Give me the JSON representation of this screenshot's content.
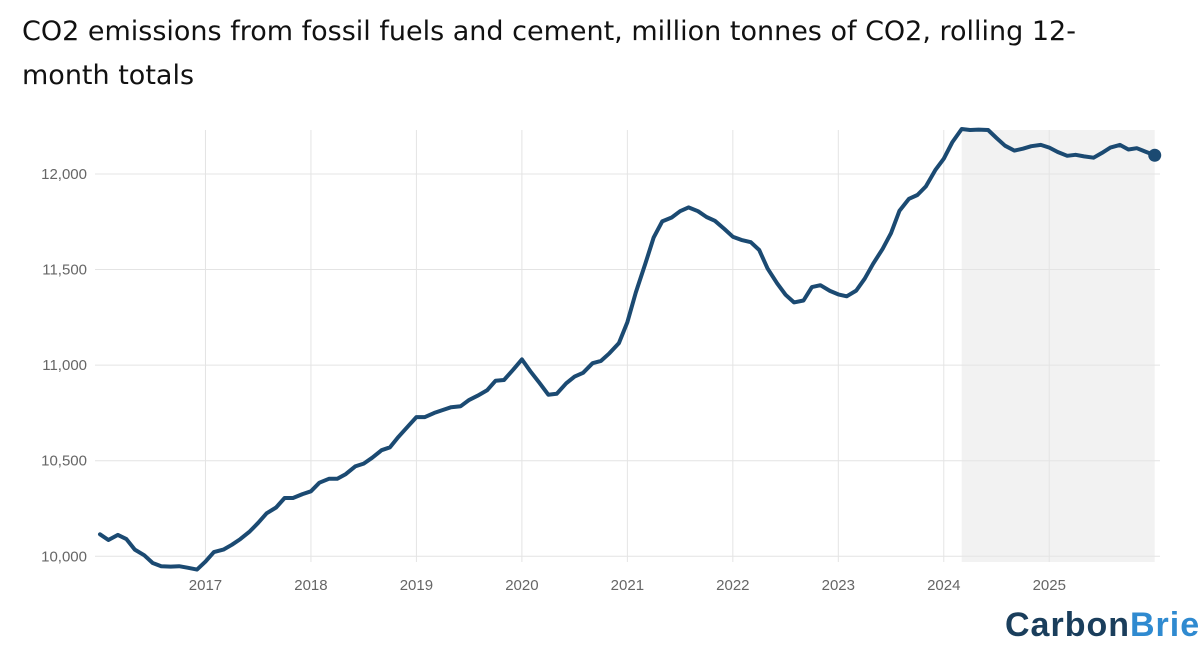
{
  "subtitle": "CO2 emissions from fossil fuels and cement, million tonnes of CO2, rolling 12-month totals",
  "brand": {
    "part1": "Carbon",
    "part2": "Brief"
  },
  "colors": {
    "line": "#1b4a72",
    "shade": "#f2f2f2",
    "grid": "#e4e4e4",
    "axis_text": "#666666"
  },
  "chart_data": {
    "type": "line",
    "title": "",
    "xlabel": "",
    "ylabel": "",
    "ylim": [
      9970,
      12230
    ],
    "xlim": [
      2016.0,
      2026.05
    ],
    "y_ticks": [
      {
        "value": 10000,
        "label": "10,000"
      },
      {
        "value": 10500,
        "label": "10,500"
      },
      {
        "value": 11000,
        "label": "11,000"
      },
      {
        "value": 11500,
        "label": "11,500"
      },
      {
        "value": 12000,
        "label": "12,000"
      }
    ],
    "x_ticks": [
      {
        "value": 2017,
        "label": "2017"
      },
      {
        "value": 2018,
        "label": "2018"
      },
      {
        "value": 2019,
        "label": "2019"
      },
      {
        "value": 2020,
        "label": "2020"
      },
      {
        "value": 2021,
        "label": "2021"
      },
      {
        "value": 2022,
        "label": "2022"
      },
      {
        "value": 2023,
        "label": "2023"
      },
      {
        "value": 2024,
        "label": "2024"
      },
      {
        "value": 2025,
        "label": "2025"
      }
    ],
    "grid": true,
    "shaded_region": {
      "x_start": 2024.17,
      "x_end": 2026.0
    },
    "series": [
      {
        "end_marker": true,
        "points": [
          [
            2016.0,
            10115
          ],
          [
            2016.08,
            10085
          ],
          [
            2016.17,
            10112
          ],
          [
            2016.25,
            10090
          ],
          [
            2016.33,
            10035
          ],
          [
            2016.42,
            10005
          ],
          [
            2016.5,
            9965
          ],
          [
            2016.58,
            9948
          ],
          [
            2016.67,
            9946
          ],
          [
            2016.75,
            9948
          ],
          [
            2016.83,
            9940
          ],
          [
            2016.92,
            9930
          ],
          [
            2017.0,
            9972
          ],
          [
            2017.08,
            10022
          ],
          [
            2017.17,
            10035
          ],
          [
            2017.25,
            10060
          ],
          [
            2017.33,
            10090
          ],
          [
            2017.42,
            10130
          ],
          [
            2017.5,
            10175
          ],
          [
            2017.58,
            10225
          ],
          [
            2017.67,
            10255
          ],
          [
            2017.75,
            10305
          ],
          [
            2017.83,
            10305
          ],
          [
            2017.92,
            10325
          ],
          [
            2018.0,
            10340
          ],
          [
            2018.08,
            10385
          ],
          [
            2018.17,
            10405
          ],
          [
            2018.25,
            10405
          ],
          [
            2018.33,
            10430
          ],
          [
            2018.42,
            10470
          ],
          [
            2018.5,
            10485
          ],
          [
            2018.58,
            10515
          ],
          [
            2018.67,
            10555
          ],
          [
            2018.75,
            10570
          ],
          [
            2018.83,
            10625
          ],
          [
            2018.92,
            10680
          ],
          [
            2019.0,
            10728
          ],
          [
            2019.08,
            10728
          ],
          [
            2019.17,
            10750
          ],
          [
            2019.25,
            10765
          ],
          [
            2019.33,
            10780
          ],
          [
            2019.42,
            10785
          ],
          [
            2019.5,
            10818
          ],
          [
            2019.58,
            10840
          ],
          [
            2019.67,
            10868
          ],
          [
            2019.75,
            10918
          ],
          [
            2019.83,
            10922
          ],
          [
            2019.92,
            10978
          ],
          [
            2020.0,
            11030
          ],
          [
            2020.08,
            10968
          ],
          [
            2020.17,
            10905
          ],
          [
            2020.25,
            10845
          ],
          [
            2020.33,
            10850
          ],
          [
            2020.42,
            10905
          ],
          [
            2020.5,
            10940
          ],
          [
            2020.58,
            10960
          ],
          [
            2020.67,
            11010
          ],
          [
            2020.75,
            11022
          ],
          [
            2020.83,
            11062
          ],
          [
            2020.92,
            11115
          ],
          [
            2021.0,
            11225
          ],
          [
            2021.08,
            11380
          ],
          [
            2021.17,
            11530
          ],
          [
            2021.25,
            11668
          ],
          [
            2021.33,
            11752
          ],
          [
            2021.42,
            11772
          ],
          [
            2021.5,
            11805
          ],
          [
            2021.58,
            11825
          ],
          [
            2021.67,
            11805
          ],
          [
            2021.75,
            11775
          ],
          [
            2021.83,
            11755
          ],
          [
            2021.92,
            11712
          ],
          [
            2022.0,
            11672
          ],
          [
            2022.08,
            11655
          ],
          [
            2022.17,
            11643
          ],
          [
            2022.25,
            11602
          ],
          [
            2022.33,
            11505
          ],
          [
            2022.42,
            11428
          ],
          [
            2022.5,
            11368
          ],
          [
            2022.58,
            11328
          ],
          [
            2022.67,
            11338
          ],
          [
            2022.75,
            11408
          ],
          [
            2022.83,
            11418
          ],
          [
            2022.92,
            11388
          ],
          [
            2023.0,
            11370
          ],
          [
            2023.08,
            11360
          ],
          [
            2023.17,
            11390
          ],
          [
            2023.25,
            11452
          ],
          [
            2023.33,
            11530
          ],
          [
            2023.42,
            11608
          ],
          [
            2023.5,
            11690
          ],
          [
            2023.58,
            11808
          ],
          [
            2023.67,
            11870
          ],
          [
            2023.75,
            11890
          ],
          [
            2023.83,
            11935
          ],
          [
            2023.92,
            12020
          ],
          [
            2024.0,
            12080
          ],
          [
            2024.08,
            12165
          ],
          [
            2024.17,
            12235
          ],
          [
            2024.25,
            12230
          ],
          [
            2024.33,
            12232
          ],
          [
            2024.42,
            12230
          ],
          [
            2024.5,
            12188
          ],
          [
            2024.58,
            12148
          ],
          [
            2024.67,
            12122
          ],
          [
            2024.75,
            12132
          ],
          [
            2024.83,
            12145
          ],
          [
            2024.92,
            12152
          ],
          [
            2025.0,
            12138
          ],
          [
            2025.08,
            12115
          ],
          [
            2025.17,
            12095
          ],
          [
            2025.25,
            12100
          ],
          [
            2025.33,
            12092
          ],
          [
            2025.42,
            12085
          ],
          [
            2025.5,
            12110
          ],
          [
            2025.58,
            12138
          ],
          [
            2025.67,
            12152
          ],
          [
            2025.75,
            12128
          ],
          [
            2025.83,
            12135
          ],
          [
            2025.92,
            12115
          ],
          [
            2026.0,
            12098
          ]
        ]
      }
    ]
  }
}
